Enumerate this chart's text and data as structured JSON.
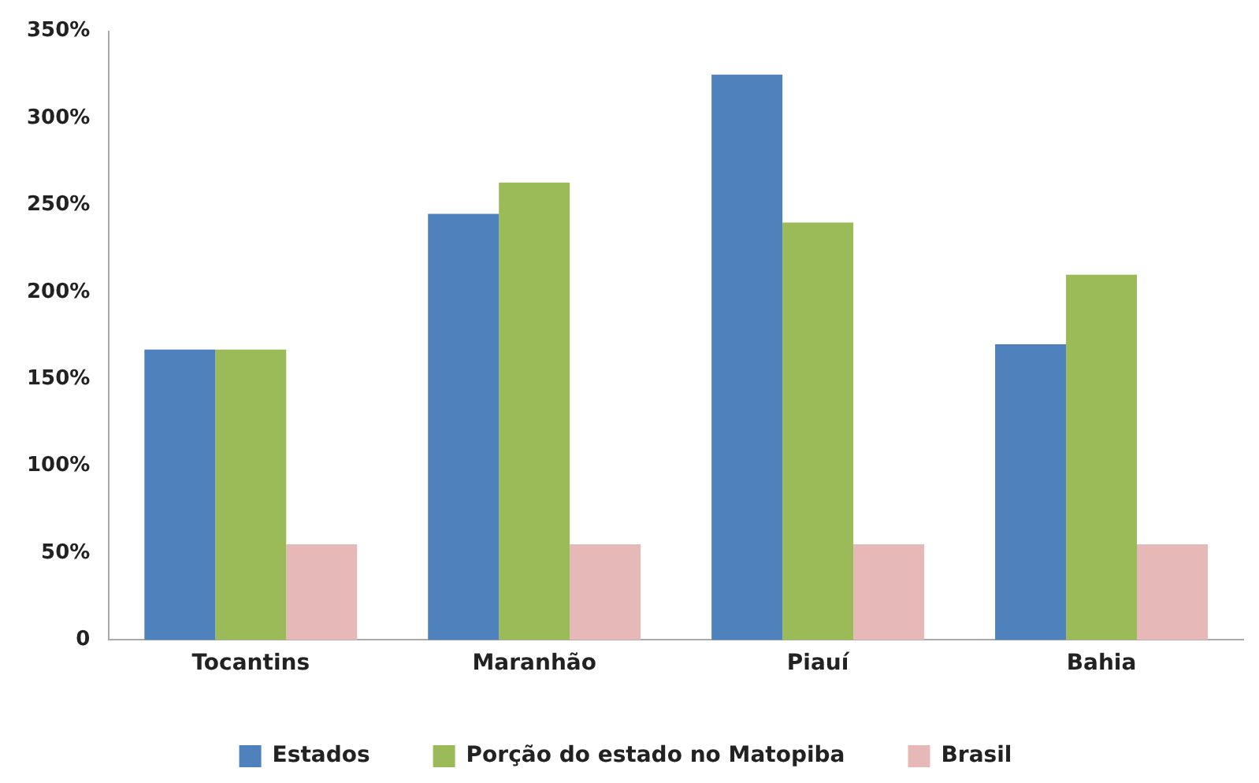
{
  "chart_data": {
    "type": "bar",
    "categories": [
      "Tocantins",
      "Maranhão",
      "Piauí",
      "Bahia"
    ],
    "series": [
      {
        "name": "Estados",
        "color": "#4f81bd",
        "values": [
          167,
          245,
          325,
          170
        ]
      },
      {
        "name": "Porção do estado no Matopiba",
        "color": "#9bbb59",
        "values": [
          167,
          263,
          240,
          210
        ]
      },
      {
        "name": "Brasil",
        "color": "#e6b9b8",
        "values": [
          55,
          55,
          55,
          55
        ]
      }
    ],
    "ylim": [
      0,
      350
    ],
    "yticks": [
      {
        "value": 0,
        "label": "0"
      },
      {
        "value": 50,
        "label": "50%"
      },
      {
        "value": 100,
        "label": "100%"
      },
      {
        "value": 150,
        "label": "150%"
      },
      {
        "value": 200,
        "label": "200%"
      },
      {
        "value": 250,
        "label": "250%"
      },
      {
        "value": 300,
        "label": "300%"
      },
      {
        "value": 350,
        "label": "350%"
      }
    ],
    "grid": false,
    "legend": "bottom"
  }
}
